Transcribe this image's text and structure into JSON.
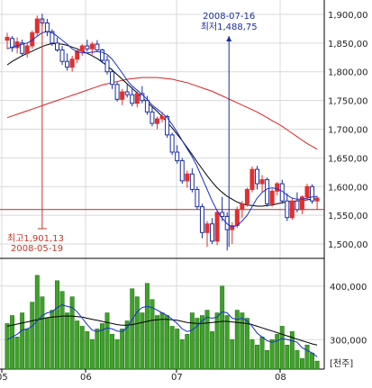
{
  "chart_data": {
    "type": "candlestick",
    "x_ticks": [
      "05",
      "06",
      "07",
      "08"
    ],
    "price": {
      "y_ticks": [
        "1,900,00",
        "1,850,00",
        "1,800,00",
        "1,750,00",
        "1,700,00",
        "1,650,00",
        "1,600,00",
        "1,550,00",
        "1,500,00"
      ],
      "ylim": [
        1475,
        1925
      ],
      "reference_line": 1560,
      "candles": [
        [
          1855,
          1868,
          1840,
          1860
        ],
        [
          1858,
          1862,
          1835,
          1842
        ],
        [
          1842,
          1860,
          1832,
          1852
        ],
        [
          1850,
          1856,
          1828,
          1832
        ],
        [
          1832,
          1850,
          1825,
          1845
        ],
        [
          1845,
          1872,
          1840,
          1868
        ],
        [
          1868,
          1898,
          1862,
          1892
        ],
        [
          1892,
          1901.13,
          1880,
          1885
        ],
        [
          1885,
          1892,
          1862,
          1870
        ],
        [
          1870,
          1874,
          1845,
          1850
        ],
        [
          1850,
          1860,
          1835,
          1838
        ],
        [
          1838,
          1845,
          1812,
          1818
        ],
        [
          1818,
          1832,
          1802,
          1808
        ],
        [
          1808,
          1828,
          1800,
          1822
        ],
        [
          1822,
          1840,
          1815,
          1836
        ],
        [
          1836,
          1848,
          1828,
          1845
        ],
        [
          1845,
          1856,
          1835,
          1840
        ],
        [
          1840,
          1852,
          1830,
          1848
        ],
        [
          1848,
          1855,
          1836,
          1838
        ],
        [
          1838,
          1840,
          1815,
          1820
        ],
        [
          1820,
          1828,
          1795,
          1800
        ],
        [
          1800,
          1805,
          1770,
          1778
        ],
        [
          1778,
          1782,
          1748,
          1752
        ],
        [
          1752,
          1770,
          1742,
          1765
        ],
        [
          1765,
          1780,
          1755,
          1760
        ],
        [
          1760,
          1772,
          1740,
          1745
        ],
        [
          1745,
          1766,
          1738,
          1762
        ],
        [
          1762,
          1775,
          1745,
          1750
        ],
        [
          1750,
          1758,
          1725,
          1730
        ],
        [
          1730,
          1738,
          1705,
          1710
        ],
        [
          1710,
          1722,
          1700,
          1718
        ],
        [
          1718,
          1730,
          1712,
          1722
        ],
        [
          1722,
          1725,
          1685,
          1690
        ],
        [
          1690,
          1694,
          1655,
          1660
        ],
        [
          1660,
          1672,
          1640,
          1645
        ],
        [
          1645,
          1650,
          1605,
          1610
        ],
        [
          1610,
          1628,
          1598,
          1622
        ],
        [
          1622,
          1632,
          1590,
          1595
        ],
        [
          1595,
          1600,
          1560,
          1565
        ],
        [
          1565,
          1570,
          1510,
          1520
        ],
        [
          1520,
          1540,
          1495,
          1535
        ],
        [
          1535,
          1545,
          1500,
          1505
        ],
        [
          1505,
          1560,
          1498,
          1555
        ],
        [
          1555,
          1582,
          1540,
          1548
        ],
        [
          1548,
          1555,
          1488.75,
          1525
        ],
        [
          1525,
          1538,
          1500,
          1532
        ],
        [
          1532,
          1565,
          1528,
          1560
        ],
        [
          1560,
          1575,
          1545,
          1570
        ],
        [
          1570,
          1598,
          1565,
          1595
        ],
        [
          1595,
          1635,
          1590,
          1630
        ],
        [
          1630,
          1636,
          1595,
          1605
        ],
        [
          1605,
          1620,
          1590,
          1612
        ],
        [
          1612,
          1616,
          1565,
          1570
        ],
        [
          1570,
          1596,
          1565,
          1592
        ],
        [
          1592,
          1608,
          1585,
          1605
        ],
        [
          1605,
          1612,
          1570,
          1575
        ],
        [
          1575,
          1588,
          1540,
          1546
        ],
        [
          1546,
          1580,
          1542,
          1575
        ],
        [
          1575,
          1590,
          1555,
          1560
        ],
        [
          1560,
          1585,
          1552,
          1582
        ],
        [
          1582,
          1605,
          1575,
          1600
        ],
        [
          1600,
          1604,
          1570,
          1575
        ],
        [
          1575,
          1584,
          1560,
          1580
        ]
      ],
      "ma_short": [
        1840,
        1843,
        1845,
        1848,
        1850,
        1855,
        1862,
        1868,
        1870,
        1868,
        1862,
        1855,
        1848,
        1840,
        1835,
        1833,
        1833,
        1834,
        1835,
        1834,
        1830,
        1822,
        1810,
        1798,
        1785,
        1775,
        1768,
        1760,
        1752,
        1742,
        1735,
        1728,
        1720,
        1708,
        1695,
        1680,
        1666,
        1652,
        1635,
        1615,
        1595,
        1575,
        1558,
        1545,
        1535,
        1530,
        1532,
        1540,
        1550,
        1565,
        1580,
        1590,
        1596,
        1598,
        1596,
        1592,
        1585,
        1580,
        1578,
        1578,
        1580,
        1582,
        1583
      ],
      "ma_mid": [
        1812,
        1818,
        1823,
        1828,
        1832,
        1836,
        1840,
        1844,
        1847,
        1849,
        1849,
        1848,
        1846,
        1843,
        1840,
        1836,
        1832,
        1828,
        1823,
        1817,
        1810,
        1803,
        1795,
        1787,
        1779,
        1771,
        1763,
        1755,
        1747,
        1739,
        1731,
        1722,
        1712,
        1702,
        1691,
        1680,
        1668,
        1656,
        1643,
        1631,
        1619,
        1608,
        1598,
        1590,
        1583,
        1578,
        1573,
        1570,
        1568,
        1567,
        1566,
        1566,
        1567,
        1568,
        1570,
        1572,
        1573,
        1574,
        1575,
        1576,
        1577,
        1578,
        1579
      ],
      "ma_long": [
        1720,
        1723,
        1726,
        1729,
        1732,
        1735,
        1738,
        1741,
        1744,
        1747,
        1750,
        1753,
        1756,
        1759,
        1762,
        1765,
        1768,
        1771,
        1774,
        1777,
        1779,
        1781,
        1783,
        1785,
        1787,
        1788,
        1789,
        1790,
        1790,
        1790,
        1790,
        1789,
        1788,
        1787,
        1785,
        1783,
        1781,
        1778,
        1775,
        1772,
        1769,
        1766,
        1762,
        1758,
        1754,
        1750,
        1746,
        1742,
        1738,
        1734,
        1730,
        1725,
        1720,
        1715,
        1710,
        1705,
        1699,
        1693,
        1687,
        1681,
        1675,
        1670,
        1665
      ],
      "annotations": {
        "high": {
          "label": "최고1,901,13",
          "date": "2008-05-19",
          "value": 1901.13,
          "index": 7
        },
        "low": {
          "label": "최저1,488,75",
          "date": "2008-07-16",
          "value": 1488.75,
          "index": 44
        }
      }
    },
    "volume": {
      "unit_label": "[천주]",
      "y_ticks": [
        "400,000",
        "300,000"
      ],
      "ylim": [
        245000,
        450000
      ],
      "values": [
        330000,
        345000,
        305000,
        350000,
        320000,
        370000,
        420000,
        380000,
        340000,
        355000,
        410000,
        390000,
        350000,
        380000,
        335000,
        325000,
        315000,
        300000,
        320000,
        330000,
        350000,
        310000,
        300000,
        320000,
        335000,
        395000,
        380000,
        350000,
        405000,
        375000,
        345000,
        350000,
        345000,
        325000,
        320000,
        300000,
        310000,
        350000,
        340000,
        345000,
        355000,
        315000,
        350000,
        400000,
        345000,
        300000,
        355000,
        350000,
        340000,
        300000,
        290000,
        305000,
        280000,
        300000,
        310000,
        325000,
        290000,
        315000,
        280000,
        265000,
        290000,
        275000,
        260000
      ],
      "ma_short": [
        300000,
        305000,
        310000,
        318000,
        320000,
        325000,
        335000,
        345000,
        350000,
        352000,
        360000,
        365000,
        362000,
        360000,
        352000,
        340000,
        328000,
        318000,
        315000,
        318000,
        322000,
        320000,
        316000,
        315000,
        322000,
        338000,
        352000,
        360000,
        362000,
        360000,
        355000,
        350000,
        345000,
        338000,
        330000,
        320000,
        315000,
        318000,
        325000,
        335000,
        342000,
        340000,
        342000,
        352000,
        350000,
        340000,
        338000,
        340000,
        335000,
        325000,
        312000,
        305000,
        298000,
        295000,
        298000,
        302000,
        300000,
        298000,
        295000,
        285000,
        280000,
        275000,
        268000
      ],
      "ma_long": [
        325000,
        327000,
        329000,
        331000,
        333000,
        335000,
        337000,
        339000,
        341000,
        342000,
        343000,
        344000,
        344000,
        344000,
        343000,
        342000,
        340000,
        338000,
        336000,
        334000,
        332000,
        330000,
        328000,
        327000,
        327000,
        328000,
        330000,
        332000,
        334000,
        336000,
        337000,
        338000,
        338000,
        337000,
        336000,
        334000,
        332000,
        331000,
        330000,
        330000,
        331000,
        332000,
        333000,
        334000,
        334000,
        333000,
        332000,
        331000,
        330000,
        328000,
        325000,
        322000,
        319000,
        316000,
        313000,
        310000,
        307000,
        304000,
        301000,
        298000,
        295000,
        292000,
        290000
      ]
    },
    "colors": {
      "up": "#e03030",
      "down": "#1a2fa0",
      "ma_short": "#1a2fd0",
      "ma_mid": "#000000",
      "ma_long": "#e02020",
      "volume_bar": "#3fa12a",
      "volume_bar_edge": "#1f6a14",
      "annotation": "#1a2fa0",
      "annotation_text": "#c0392b",
      "reference_line": "#b03030",
      "grid": "#d9d9d9",
      "axis": "#000000",
      "tick_text": "#222222"
    }
  }
}
